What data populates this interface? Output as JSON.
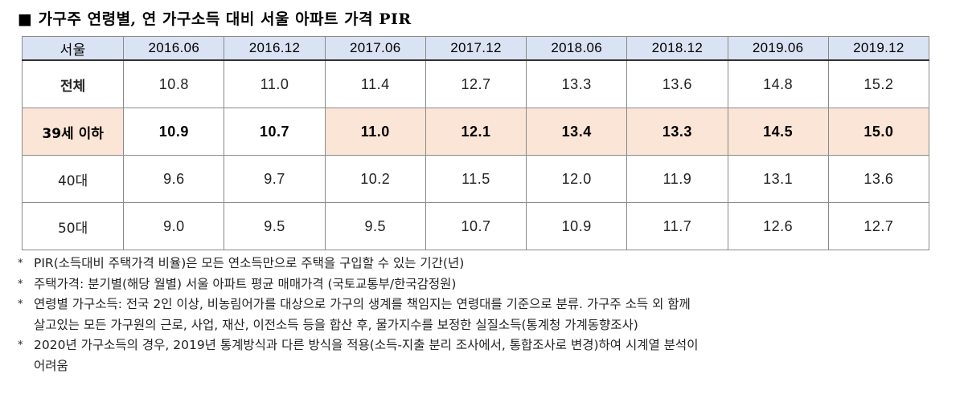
{
  "title": "■ 가구주 연령별, 연 가구소득 대비 서울 아파트 가격 PIR",
  "table": {
    "corner": "서울",
    "headers": [
      "2016.06",
      "2016.12",
      "2017.06",
      "2017.12",
      "2018.06",
      "2018.12",
      "2019.06",
      "2019.12"
    ],
    "rows": [
      {
        "label": "전체",
        "values": [
          "10.8",
          "11.0",
          "11.4",
          "12.7",
          "13.3",
          "13.6",
          "14.8",
          "15.2"
        ]
      },
      {
        "label": "39세 이하",
        "values": [
          "10.9",
          "10.7",
          "11.0",
          "12.1",
          "13.4",
          "13.3",
          "14.5",
          "15.0"
        ]
      },
      {
        "label": "40대",
        "values": [
          "9.6",
          "9.7",
          "10.2",
          "11.5",
          "12.0",
          "11.9",
          "13.1",
          "13.6"
        ]
      },
      {
        "label": "50대",
        "values": [
          "9.0",
          "9.5",
          "9.5",
          "10.7",
          "10.9",
          "11.7",
          "12.6",
          "12.7"
        ]
      }
    ]
  },
  "notes": [
    {
      "mark": "*",
      "text": "PIR(소득대비 주택가격 비율)은 모든 연소득만으로 주택을 구입할 수 있는 기간(년)"
    },
    {
      "mark": "*",
      "text": "주택가격: 분기별(해당 월별) 서울 아파트 평균 매매가격 (국토교통부/한국감정원)"
    },
    {
      "mark": "*",
      "text": "연령별 가구소득: 전국 2인 이상, 비농림어가를 대상으로 가구의 생계를 책임지는 연령대를 기준으로 분류. 가구주 소득 외 함께\n살고있는 모든 가구원의 근로, 사업, 재산, 이전소득 등을 합산 후, 물가지수를 보정한 실질소득(통계청 가계동향조사)"
    },
    {
      "mark": "*",
      "text": "2020년 가구소득의 경우, 2019년 통계방식과 다른 방식을 적용(소득-지출 분리 조사에서, 통합조사로 변경)하여 시계열 분석이\n어려움"
    }
  ],
  "colors": {
    "header_bg": "#dae3f3",
    "highlight_bg": "#fbe5d6"
  }
}
